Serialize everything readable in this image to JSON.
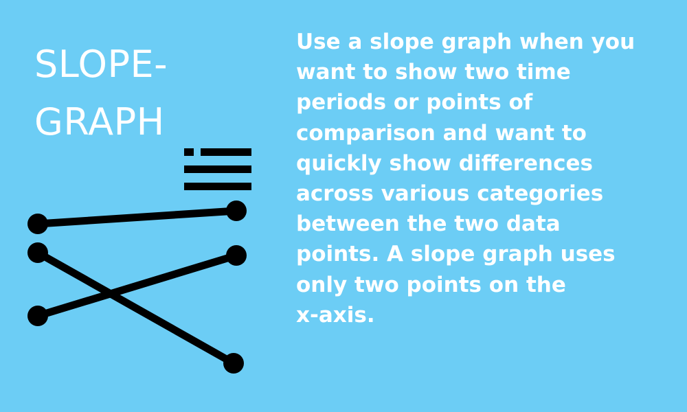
{
  "colors": {
    "background": "#6ccdf5",
    "text": "#ffffff",
    "graphic": "#000000"
  },
  "title": {
    "line1": "SLOPE-",
    "line2": "GRAPH"
  },
  "description": {
    "lines": [
      "Use a slope graph when you",
      "want to show two time",
      "periods or points of",
      "comparison and want to",
      "quickly show differences",
      "across various categories",
      "between the two data",
      "points. A slope graph uses",
      "only two points on the",
      "x-axis."
    ]
  },
  "icons": {
    "legend": "list-icon",
    "slopegraph": "slopegraph-icon"
  }
}
